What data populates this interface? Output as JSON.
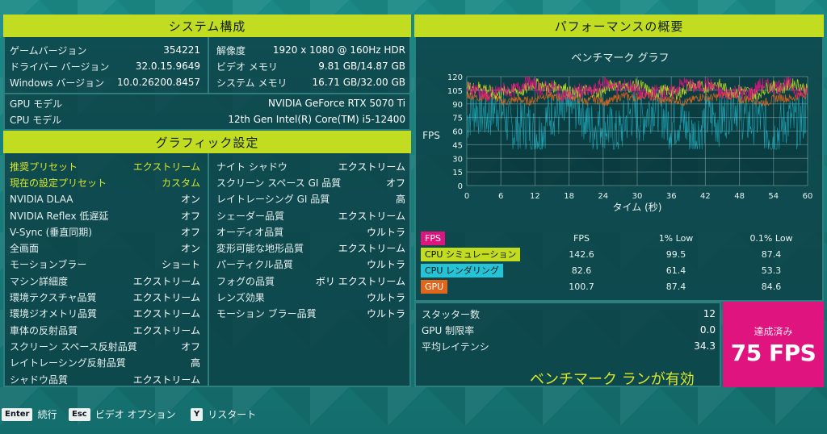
{
  "system": {
    "header": "システム構成",
    "left": [
      {
        "k": "ゲームバージョン",
        "v": "354221"
      },
      {
        "k": "ドライバー バージョン",
        "v": "32.0.15.9649"
      },
      {
        "k": "Windows バージョン",
        "v": "10.0.26200.8457"
      }
    ],
    "right": [
      {
        "k": "解像度",
        "v": "1920 x 1080 @ 160Hz HDR"
      },
      {
        "k": "ビデオ メモリ",
        "v": "9.81 GB/14.87 GB"
      },
      {
        "k": "システム メモリ",
        "v": "16.71 GB/32.00 GB"
      }
    ],
    "hw": [
      {
        "k": "GPU モデル",
        "v": "NVIDIA GeForce RTX 5070 Ti"
      },
      {
        "k": "CPU モデル",
        "v": "12th Gen Intel(R) Core(TM) i5-12400"
      }
    ]
  },
  "graphics": {
    "header": "グラフィック設定",
    "left": [
      {
        "k": "推奨プリセット",
        "v": "エクストリーム",
        "hi": true
      },
      {
        "k": "現在の設定プリセット",
        "v": "カスタム",
        "hi": true
      },
      {
        "k": "NVIDIA DLAA",
        "v": "オン"
      },
      {
        "k": "NVIDIA Reflex 低遅延",
        "v": "オフ"
      },
      {
        "k": "V-Sync (垂直同期)",
        "v": "オフ"
      },
      {
        "k": "全画面",
        "v": "オン"
      },
      {
        "k": "モーションブラー",
        "v": "ショート"
      },
      {
        "k": "マシン詳細度",
        "v": "エクストリーム"
      },
      {
        "k": "環境テクスチャ品質",
        "v": "エクストリーム"
      },
      {
        "k": "環境ジオメトリ品質",
        "v": "エクストリーム"
      },
      {
        "k": "車体の反射品質",
        "v": "エクストリーム"
      },
      {
        "k": "スクリーン スペース反射品質",
        "v": "オフ"
      },
      {
        "k": "レイトレーシング反射品質",
        "v": "高"
      },
      {
        "k": "シャドウ品質",
        "v": "エクストリーム"
      }
    ],
    "right": [
      {
        "k": "ナイト シャドウ",
        "v": "エクストリーム"
      },
      {
        "k": "スクリーン スペース GI 品質",
        "v": "オフ"
      },
      {
        "k": "レイトレーシング GI 品質",
        "v": "高"
      },
      {
        "k": "シェーダー品質",
        "v": "エクストリーム"
      },
      {
        "k": "オーディオ品質",
        "v": "ウルトラ"
      },
      {
        "k": "変形可能な地形品質",
        "v": "エクストリーム"
      },
      {
        "k": "パーティクル品質",
        "v": "ウルトラ"
      },
      {
        "k": "フォグの品質",
        "v": "ボリ エクストリーム"
      },
      {
        "k": "レンズ効果",
        "v": "ウルトラ"
      },
      {
        "k": "モーション ブラー品質",
        "v": "ウルトラ"
      }
    ]
  },
  "performance": {
    "header": "パフォーマンスの概要",
    "chart_title": "ベンチマーク グラフ",
    "y_axis_label": "FPS",
    "x_axis_label": "タイム (秒)",
    "columns": [
      "FPS",
      "1% Low",
      "0.1% Low"
    ],
    "rows": [
      {
        "label": "FPS",
        "color": "#e0147e",
        "text_color": "#ffffff",
        "values": [
          "",
          "",
          ""
        ]
      },
      {
        "label": "CPU シミュレーション",
        "color": "#c2dc22",
        "text_color": "#111111",
        "values": [
          "142.6",
          "99.5",
          "87.4"
        ]
      },
      {
        "label": "CPU レンダリング",
        "color": "#25c3d6",
        "text_color": "#111111",
        "values": [
          "82.6",
          "61.4",
          "53.3"
        ]
      },
      {
        "label": "GPU",
        "color": "#e0661c",
        "text_color": "#ffffff",
        "values": [
          "100.7",
          "87.4",
          "84.6"
        ]
      }
    ],
    "stats": [
      {
        "k": "スタッター数",
        "v": "12"
      },
      {
        "k": "GPU 制限率",
        "v": "0.0"
      },
      {
        "k": "平均レイテンシ",
        "v": "34.3"
      }
    ],
    "achieved_label": "達成済み",
    "achieved_value": "75 FPS",
    "benchmark_status": "ベンチマーク ランが有効"
  },
  "chart_data": {
    "type": "line",
    "title": "ベンチマーク グラフ",
    "xlabel": "タイム (秒)",
    "ylabel": "FPS",
    "xlim": [
      0,
      60
    ],
    "ylim": [
      0,
      120
    ],
    "x_ticks": [
      0,
      6,
      12,
      18,
      24,
      30,
      36,
      42,
      48,
      54,
      60
    ],
    "y_ticks": [
      0,
      15,
      30,
      45,
      60,
      75,
      90,
      105,
      120
    ],
    "grid": true,
    "series": [
      {
        "name": "CPU レンダリング",
        "color": "#25c3d6",
        "band": [
          40,
          105
        ]
      },
      {
        "name": "GPU",
        "color": "#e0661c",
        "band": [
          88,
          104
        ]
      },
      {
        "name": "CPU シミュレーション",
        "color": "#c2dc22",
        "band": [
          95,
          118
        ]
      },
      {
        "name": "FPS",
        "color": "#e0147e",
        "band": [
          92,
          120
        ]
      }
    ]
  },
  "footer": [
    {
      "key": "Enter",
      "label": "続行"
    },
    {
      "key": "Esc",
      "label": "ビデオ オプション"
    },
    {
      "key": "Y",
      "label": "リスタート"
    }
  ]
}
